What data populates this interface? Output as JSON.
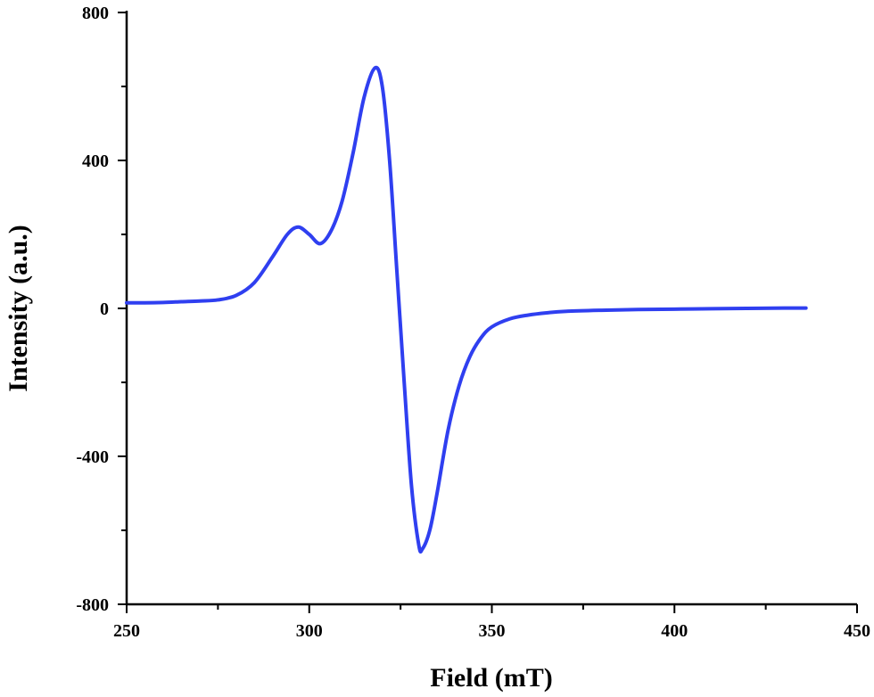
{
  "chart_data": {
    "type": "line",
    "title": "",
    "xlabel": "Field (mT)",
    "ylabel": "Intensity (a.u.)",
    "xlim": [
      250,
      450
    ],
    "ylim": [
      -800,
      800
    ],
    "x_ticks": [
      250,
      300,
      350,
      400,
      450
    ],
    "y_ticks": [
      -800,
      -400,
      0,
      400,
      800
    ],
    "x_tick_labels": [
      "250",
      "300",
      "350",
      "400",
      "450"
    ],
    "y_tick_labels": [
      "-800",
      "-400",
      "0",
      "400",
      "800"
    ],
    "grid": false,
    "legend": "none",
    "line_color": "#2f3ff0",
    "series": [
      {
        "x": [
          250,
          255,
          260,
          265,
          270,
          275,
          280,
          285,
          290,
          294,
          297,
          300,
          303,
          306,
          309,
          312,
          315,
          318,
          320,
          322,
          324,
          326,
          328,
          330,
          331,
          333,
          335,
          338,
          341,
          344,
          347,
          350,
          355,
          360,
          365,
          370,
          380,
          390,
          400,
          410,
          420,
          430,
          436
        ],
        "y": [
          15,
          15,
          16,
          18,
          20,
          23,
          35,
          70,
          140,
          200,
          220,
          200,
          175,
          210,
          290,
          420,
          570,
          650,
          600,
          400,
          100,
          -200,
          -480,
          -640,
          -650,
          -600,
          -500,
          -330,
          -210,
          -130,
          -80,
          -50,
          -28,
          -18,
          -12,
          -8,
          -5,
          -3,
          -2,
          -1,
          0,
          1,
          1
        ]
      }
    ]
  }
}
